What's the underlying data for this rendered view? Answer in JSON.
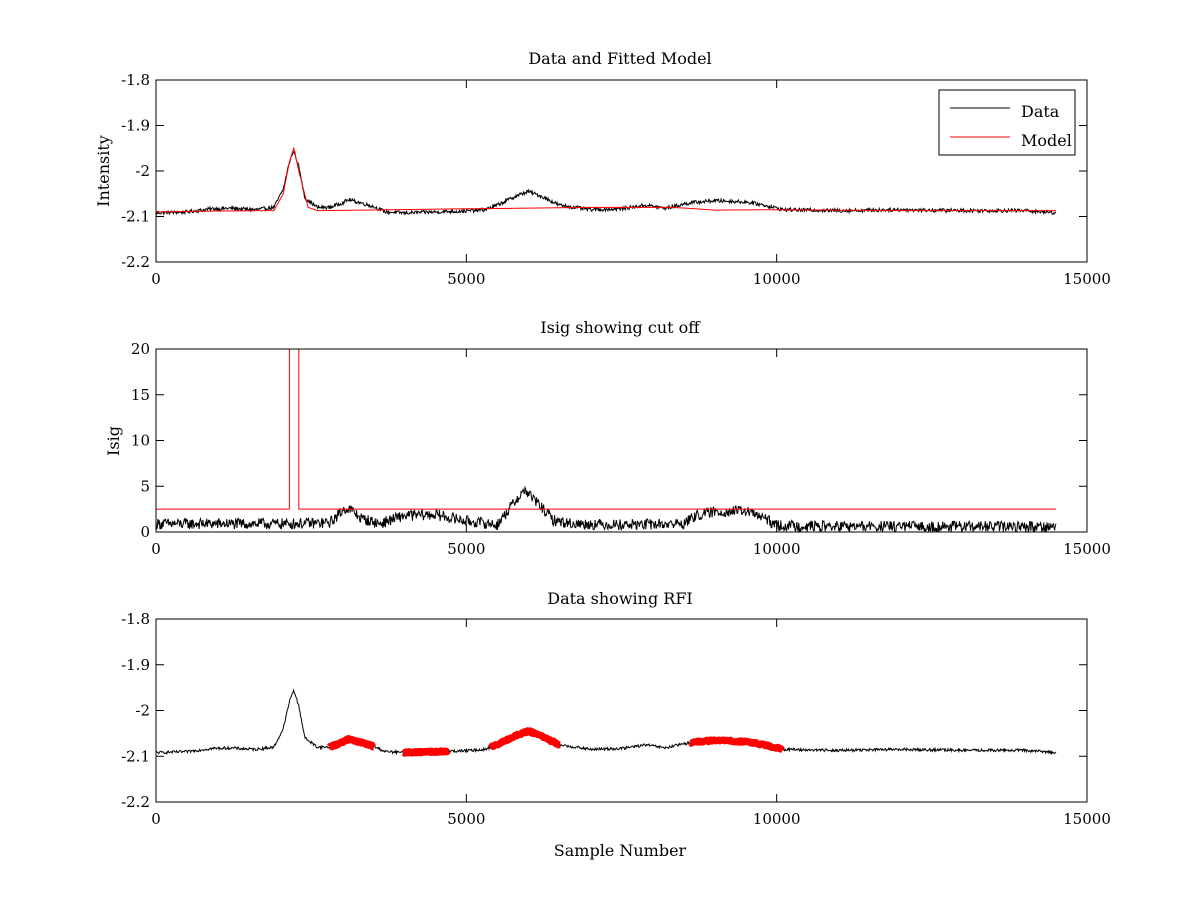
{
  "chart_data": [
    {
      "type": "line",
      "title": "Data and Fitted Model",
      "xlabel": "",
      "ylabel": "Intensity",
      "xlim": [
        0,
        15000
      ],
      "ylim": [
        -2.2,
        -1.8
      ],
      "xticks": [
        0,
        5000,
        10000,
        15000
      ],
      "yticks": [
        -2.2,
        -2.1,
        -2,
        -1.9,
        -1.8
      ],
      "xtick_labels": [
        "0",
        "5000",
        "10000",
        "15000"
      ],
      "ytick_labels": [
        "-2.2",
        "-2.1",
        "-2",
        "-1.9",
        "-1.8"
      ],
      "legend_position": "top-right",
      "series": [
        {
          "name": "Data",
          "color": "#000000",
          "x": [
            0,
            500,
            900,
            1200,
            1600,
            1900,
            2050,
            2150,
            2220,
            2300,
            2400,
            2600,
            2800,
            3000,
            3100,
            3300,
            3500,
            3700,
            4000,
            4500,
            5000,
            5300,
            5500,
            5800,
            6000,
            6200,
            6500,
            7000,
            7500,
            7900,
            8200,
            8600,
            9000,
            9500,
            9800,
            10100,
            11000,
            12000,
            13000,
            14000,
            14500
          ],
          "y": [
            -2.092,
            -2.09,
            -2.083,
            -2.082,
            -2.085,
            -2.08,
            -2.04,
            -1.98,
            -1.955,
            -1.99,
            -2.06,
            -2.08,
            -2.08,
            -2.07,
            -2.063,
            -2.07,
            -2.078,
            -2.09,
            -2.092,
            -2.09,
            -2.088,
            -2.085,
            -2.075,
            -2.055,
            -2.045,
            -2.055,
            -2.075,
            -2.085,
            -2.083,
            -2.075,
            -2.082,
            -2.07,
            -2.065,
            -2.068,
            -2.075,
            -2.085,
            -2.087,
            -2.085,
            -2.087,
            -2.087,
            -2.092
          ],
          "noise": 0.004
        },
        {
          "name": "Model",
          "color": "#ff0000",
          "x": [
            0,
            1000,
            1900,
            2050,
            2150,
            2220,
            2300,
            2450,
            2600,
            5000,
            7000,
            8300,
            8700,
            9000,
            10000,
            12000,
            14500
          ],
          "y": [
            -2.09,
            -2.088,
            -2.087,
            -2.05,
            -1.98,
            -1.95,
            -2.0,
            -2.08,
            -2.087,
            -2.083,
            -2.08,
            -2.08,
            -2.083,
            -2.086,
            -2.085,
            -2.087,
            -2.087
          ]
        }
      ]
    },
    {
      "type": "line",
      "title": "Isig showing cut off",
      "xlabel": "",
      "ylabel": "Isig",
      "xlim": [
        0,
        15000
      ],
      "ylim": [
        0,
        20
      ],
      "xticks": [
        0,
        5000,
        10000,
        15000
      ],
      "yticks": [
        0,
        5,
        10,
        15,
        20
      ],
      "xtick_labels": [
        "0",
        "5000",
        "10000",
        "15000"
      ],
      "ytick_labels": [
        "0",
        "5",
        "10",
        "15",
        "20"
      ],
      "series": [
        {
          "name": "Isig",
          "color": "#000000",
          "x": [
            0,
            1000,
            2000,
            2800,
            3050,
            3150,
            3300,
            3600,
            4000,
            4500,
            5000,
            5500,
            5800,
            5950,
            6100,
            6400,
            6700,
            7500,
            8500,
            8700,
            9000,
            9500,
            9800,
            10000,
            11000,
            12000,
            13000,
            14000,
            14500
          ],
          "y": [
            0.9,
            0.9,
            0.9,
            1.0,
            2.6,
            2.4,
            1.5,
            0.9,
            1.8,
            1.9,
            1.2,
            0.8,
            3.5,
            4.6,
            3.5,
            1.3,
            0.9,
            0.8,
            0.9,
            1.8,
            2.2,
            2.3,
            1.5,
            0.7,
            0.6,
            0.6,
            0.6,
            0.6,
            0.6
          ],
          "noise": 0.6
        },
        {
          "name": "Cut off",
          "color": "#ff0000",
          "x": [
            0,
            2150,
            2150,
            2300,
            2300,
            14500
          ],
          "y": [
            2.5,
            2.5,
            20,
            20,
            2.5,
            2.5
          ]
        }
      ]
    },
    {
      "type": "line",
      "title": "Data showing RFI",
      "xlabel": "Sample Number",
      "ylabel": "",
      "xlim": [
        0,
        15000
      ],
      "ylim": [
        -2.2,
        -1.8
      ],
      "xticks": [
        0,
        5000,
        10000,
        15000
      ],
      "yticks": [
        -2.2,
        -2.1,
        -2,
        -1.9,
        -1.8
      ],
      "xtick_labels": [
        "0",
        "5000",
        "10000",
        "15000"
      ],
      "ytick_labels": [
        "-2.2",
        "-2.1",
        "-2",
        "-1.9",
        "-1.8"
      ],
      "series": [
        {
          "name": "Data",
          "color": "#000000",
          "x": [
            0,
            500,
            900,
            1200,
            1600,
            1900,
            2050,
            2150,
            2220,
            2300,
            2400,
            2600,
            2800,
            3000,
            3100,
            3300,
            3500,
            3700,
            4000,
            4500,
            5000,
            5300,
            5500,
            5800,
            6000,
            6200,
            6500,
            7000,
            7500,
            7900,
            8200,
            8600,
            9000,
            9500,
            9800,
            10100,
            11000,
            12000,
            13000,
            14000,
            14500
          ],
          "y": [
            -2.092,
            -2.09,
            -2.083,
            -2.082,
            -2.085,
            -2.08,
            -2.04,
            -1.98,
            -1.955,
            -1.99,
            -2.06,
            -2.08,
            -2.08,
            -2.07,
            -2.063,
            -2.07,
            -2.078,
            -2.09,
            -2.092,
            -2.09,
            -2.088,
            -2.085,
            -2.075,
            -2.055,
            -2.045,
            -2.055,
            -2.075,
            -2.085,
            -2.083,
            -2.075,
            -2.082,
            -2.07,
            -2.065,
            -2.068,
            -2.075,
            -2.085,
            -2.087,
            -2.085,
            -2.087,
            -2.087,
            -2.092
          ],
          "noise": 0.003
        }
      ],
      "rfi_color": "#ff0000",
      "rfi_segments": [
        [
          2800,
          3500
        ],
        [
          4000,
          4700
        ],
        [
          5400,
          6500
        ],
        [
          8600,
          10100
        ]
      ]
    }
  ],
  "legend": {
    "data_label": "Data",
    "model_label": "Model"
  }
}
